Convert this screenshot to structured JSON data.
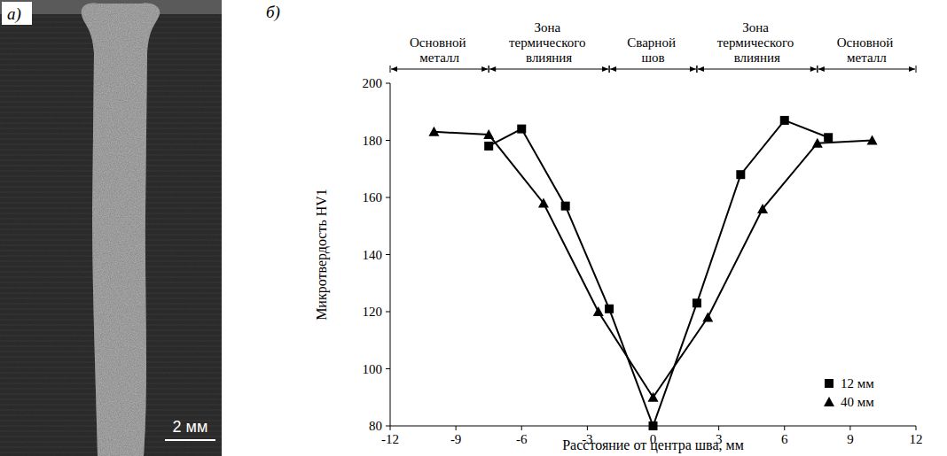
{
  "image": {
    "label": "a)",
    "scale_bar": "2 мм"
  },
  "chart_data": {
    "type": "line",
    "label": "б)",
    "x_label": "Расстояние от центра шва, мм",
    "y_label": "Микротвердость HV1",
    "xlim": [
      -12,
      12
    ],
    "xticks": [
      -12,
      -9,
      -6,
      -3,
      0,
      3,
      6,
      9,
      12
    ],
    "ylim": [
      80,
      200
    ],
    "yticks": [
      80,
      100,
      120,
      140,
      160,
      180,
      200
    ],
    "grid": false,
    "legend": "lower right",
    "zones": [
      {
        "label": "Основной металл",
        "from": -12,
        "to": -7.5
      },
      {
        "label": "Зона термического влияния",
        "from": -7.5,
        "to": -2
      },
      {
        "label": "Сварной шов",
        "from": -2,
        "to": 2
      },
      {
        "label": "Зона термического влияния",
        "from": 2,
        "to": 7.5
      },
      {
        "label": "Основной металл",
        "from": 7.5,
        "to": 12
      }
    ],
    "series": [
      {
        "name": "12 мм",
        "color": "#000000",
        "marker": "square",
        "line_style": "solid",
        "x": [
          -7.5,
          -6,
          -4,
          -2,
          0,
          2,
          4,
          6,
          8
        ],
        "values": [
          178,
          184,
          157,
          121,
          80,
          123,
          168,
          187,
          181
        ]
      },
      {
        "name": "40 мм",
        "color": "#000000",
        "marker": "triangle",
        "line_style": "solid",
        "x": [
          -10,
          -7.5,
          -5,
          -2.5,
          0,
          2.5,
          5,
          7.5,
          10
        ],
        "values": [
          183,
          182,
          158,
          120,
          90,
          118,
          156,
          179,
          180
        ]
      }
    ]
  }
}
